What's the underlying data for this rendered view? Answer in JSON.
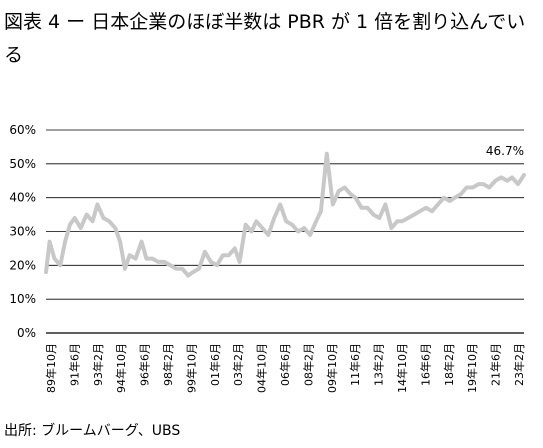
{
  "title": "図表 4 ー 日本企業のほぼ半数は PBR が 1 倍を割り込んでいる",
  "source": "出所: ブルームバーグ、UBS",
  "colors": {
    "line": "#c8c8c8",
    "grid": "#000000"
  },
  "chart_data": {
    "type": "line",
    "title": "図表 4 ー 日本企業のほぼ半数は PBR が 1 倍を割り込んでいる",
    "xlabel": "",
    "ylabel": "",
    "ylim": [
      0,
      60
    ],
    "yticks": [
      "0%",
      "10%",
      "20%",
      "30%",
      "40%",
      "50%",
      "60%"
    ],
    "xticks": [
      "89年10月",
      "91年6月",
      "93年2月",
      "94年10月",
      "96年6月",
      "98年2月",
      "99年10月",
      "01年6月",
      "03年2月",
      "04年10月",
      "06年6月",
      "08年2月",
      "09年10月",
      "11年6月",
      "13年2月",
      "14年10月",
      "16年6月",
      "18年2月",
      "19年10月",
      "21年6月",
      "23年2月"
    ],
    "grid": true,
    "annotation": "46.7%",
    "series": [
      {
        "x": [
          "1989-10",
          "1990-01",
          "1990-05",
          "1990-10",
          "1991-02",
          "1991-06",
          "1991-10",
          "1992-03",
          "1992-08",
          "1993-01",
          "1993-05",
          "1993-10",
          "1994-03",
          "1994-08",
          "1994-12",
          "1995-04",
          "1995-08",
          "1996-01",
          "1996-06",
          "1996-10",
          "1997-03",
          "1997-08",
          "1998-01",
          "1998-06",
          "1998-11",
          "1999-04",
          "1999-09",
          "2000-01",
          "2000-06",
          "2000-11",
          "2001-04",
          "2001-09",
          "2002-02",
          "2002-07",
          "2002-12",
          "2003-04",
          "2003-09",
          "2004-02",
          "2004-06",
          "2004-11",
          "2005-04",
          "2005-09",
          "2006-02",
          "2006-07",
          "2006-12",
          "2007-05",
          "2007-10",
          "2008-03",
          "2008-08",
          "2008-12",
          "2009-05",
          "2009-10",
          "2010-03",
          "2010-08",
          "2011-01",
          "2011-05",
          "2011-10",
          "2012-03",
          "2012-08",
          "2013-01",
          "2013-06",
          "2013-11",
          "2014-04",
          "2014-08",
          "2015-01",
          "2015-06",
          "2015-11",
          "2016-04",
          "2016-09",
          "2017-02",
          "2017-07",
          "2017-12",
          "2018-04",
          "2018-09",
          "2019-02",
          "2019-07",
          "2019-12",
          "2020-04",
          "2020-09",
          "2021-02",
          "2021-07",
          "2021-12",
          "2022-04",
          "2022-09",
          "2023-02"
        ],
        "values": [
          18,
          27,
          22,
          20,
          27,
          32,
          34,
          31,
          35,
          33,
          38,
          34,
          33,
          31,
          27,
          19,
          23,
          22,
          27,
          22,
          22,
          21,
          21,
          20,
          19,
          19,
          17,
          18,
          19,
          24,
          21,
          20,
          23,
          23,
          25,
          21,
          32,
          30,
          33,
          31,
          29,
          34,
          38,
          33,
          32,
          30,
          31,
          29,
          33,
          36,
          53,
          38,
          42,
          43,
          41,
          40,
          37,
          37,
          35,
          34,
          38,
          31,
          33,
          33,
          34,
          35,
          36,
          37,
          36,
          38,
          40,
          39,
          40,
          41,
          43,
          43,
          44,
          44,
          43,
          45,
          46,
          45,
          46,
          44,
          46.7
        ]
      }
    ]
  }
}
